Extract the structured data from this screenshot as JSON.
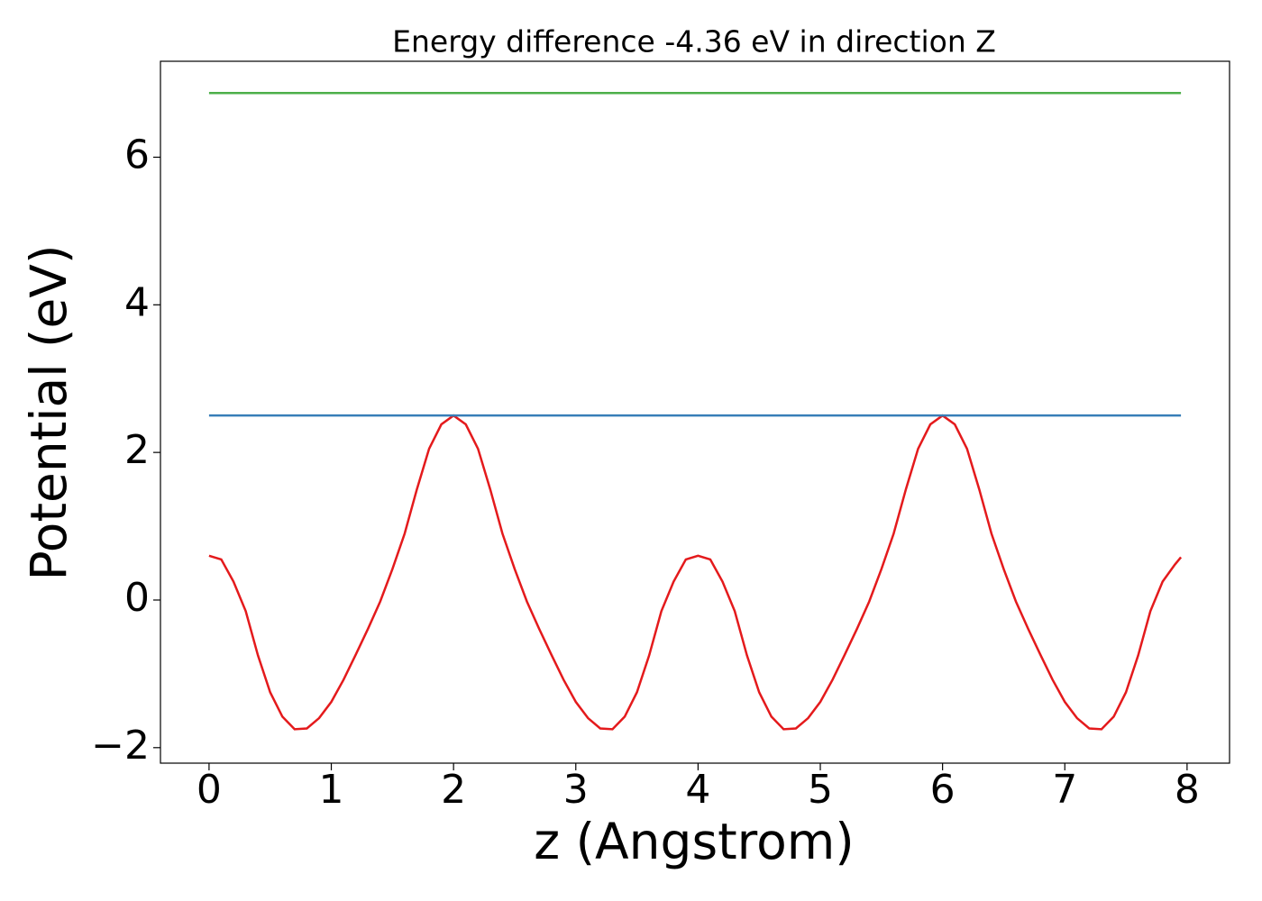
{
  "chart_data": {
    "type": "line",
    "title": "Energy difference -4.36 eV in direction Z",
    "xlabel": "z (Angstrom)",
    "ylabel": "Potential (eV)",
    "series": [
      {
        "color": "#e41a1c",
        "x": [
          0,
          0.1,
          0.2,
          0.3,
          0.4,
          0.5,
          0.6,
          0.7,
          0.8,
          0.9,
          1.0,
          1.1,
          1.2,
          1.3,
          1.4,
          1.5,
          1.6,
          1.7,
          1.8,
          1.9,
          2.0,
          2.1,
          2.2,
          2.3,
          2.4,
          2.5,
          2.6,
          2.7,
          2.8,
          2.9,
          3.0,
          3.1,
          3.2,
          3.3,
          3.4,
          3.5,
          3.6,
          3.7,
          3.8,
          3.9,
          4.0,
          4.1,
          4.2,
          4.3,
          4.4,
          4.5,
          4.6,
          4.7,
          4.8,
          4.9,
          5.0,
          5.1,
          5.2,
          5.3,
          5.4,
          5.5,
          5.6,
          5.7,
          5.8,
          5.9,
          6.0,
          6.1,
          6.2,
          6.3,
          6.4,
          6.5,
          6.6,
          6.7,
          6.8,
          6.9,
          7.0,
          7.1,
          7.2,
          7.3,
          7.4,
          7.5,
          7.6,
          7.7,
          7.8,
          7.9,
          7.95
        ],
        "values": [
          0.6,
          0.55,
          0.25,
          -0.15,
          -0.75,
          -1.25,
          -1.58,
          -1.75,
          -1.74,
          -1.6,
          -1.38,
          -1.08,
          -0.74,
          -0.39,
          -0.02,
          0.42,
          0.9,
          1.5,
          2.05,
          2.38,
          2.5,
          2.38,
          2.05,
          1.5,
          0.9,
          0.42,
          -0.02,
          -0.39,
          -0.74,
          -1.08,
          -1.38,
          -1.6,
          -1.74,
          -1.75,
          -1.58,
          -1.25,
          -0.75,
          -0.15,
          0.25,
          0.55,
          0.6,
          0.55,
          0.25,
          -0.15,
          -0.75,
          -1.25,
          -1.58,
          -1.75,
          -1.74,
          -1.6,
          -1.38,
          -1.08,
          -0.74,
          -0.39,
          -0.02,
          0.42,
          0.9,
          1.5,
          2.05,
          2.38,
          2.5,
          2.38,
          2.05,
          1.5,
          0.9,
          0.42,
          -0.02,
          -0.39,
          -0.74,
          -1.08,
          -1.38,
          -1.6,
          -1.74,
          -1.75,
          -1.58,
          -1.25,
          -0.75,
          -0.15,
          0.25,
          0.48,
          0.58
        ]
      },
      {
        "color": "#377eb8",
        "x": [
          0,
          7.95
        ],
        "values": [
          2.5,
          2.5
        ]
      },
      {
        "color": "#4daf4a",
        "x": [
          0,
          7.95
        ],
        "values": [
          6.87,
          6.87
        ]
      }
    ],
    "xlim": [
      -0.3975,
      8.3475
    ],
    "xticks": [
      0,
      1,
      2,
      3,
      4,
      5,
      6,
      7,
      8
    ],
    "ylim": [
      -2.21,
      7.3
    ],
    "yticks": [
      {
        "value": -2,
        "label": "−2"
      },
      0,
      2,
      4,
      6
    ]
  }
}
